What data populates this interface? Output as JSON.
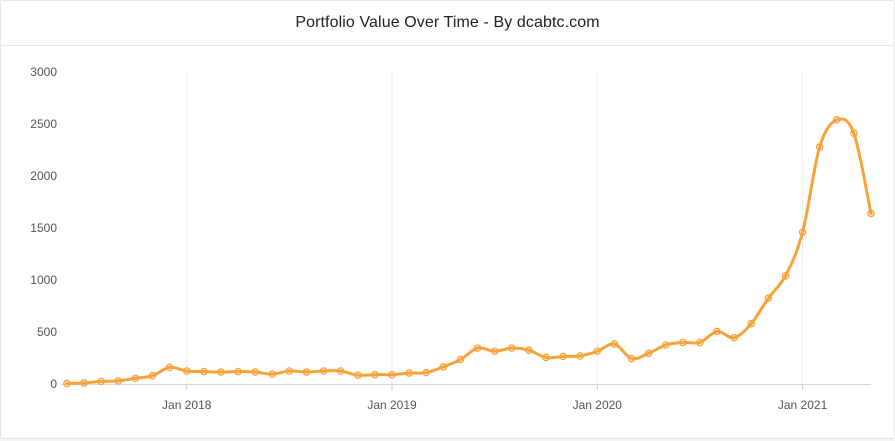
{
  "title": "Portfolio Value Over Time - By dcabtc.com",
  "colors": {
    "line": "#f7a33c",
    "grid": "#ebebeb",
    "axis": "#666666",
    "text": "#555555"
  },
  "chart_data": {
    "type": "line",
    "title": "Portfolio Value Over Time - By dcabtc.com",
    "xlabel": "",
    "ylabel": "",
    "x_start": "2017-06",
    "ylim": [
      0,
      3000
    ],
    "yticks": [
      0,
      500,
      1000,
      1500,
      2000,
      2500,
      3000
    ],
    "xticks": [
      {
        "label": "Jan 2018",
        "index": 7
      },
      {
        "label": "Jan 2019",
        "index": 19
      },
      {
        "label": "Jan 2020",
        "index": 31
      },
      {
        "label": "Jan 2021",
        "index": 43
      }
    ],
    "grid": "vertical",
    "series": [
      {
        "name": "Portfolio Value",
        "values": [
          5,
          10,
          25,
          30,
          55,
          80,
          160,
          125,
          120,
          115,
          120,
          115,
          95,
          125,
          115,
          125,
          125,
          85,
          90,
          90,
          105,
          110,
          165,
          235,
          345,
          315,
          345,
          325,
          255,
          265,
          270,
          315,
          385,
          245,
          295,
          375,
          400,
          400,
          505,
          445,
          580,
          825,
          1040,
          1460,
          2280,
          2540,
          2410,
          1640
        ]
      }
    ]
  }
}
